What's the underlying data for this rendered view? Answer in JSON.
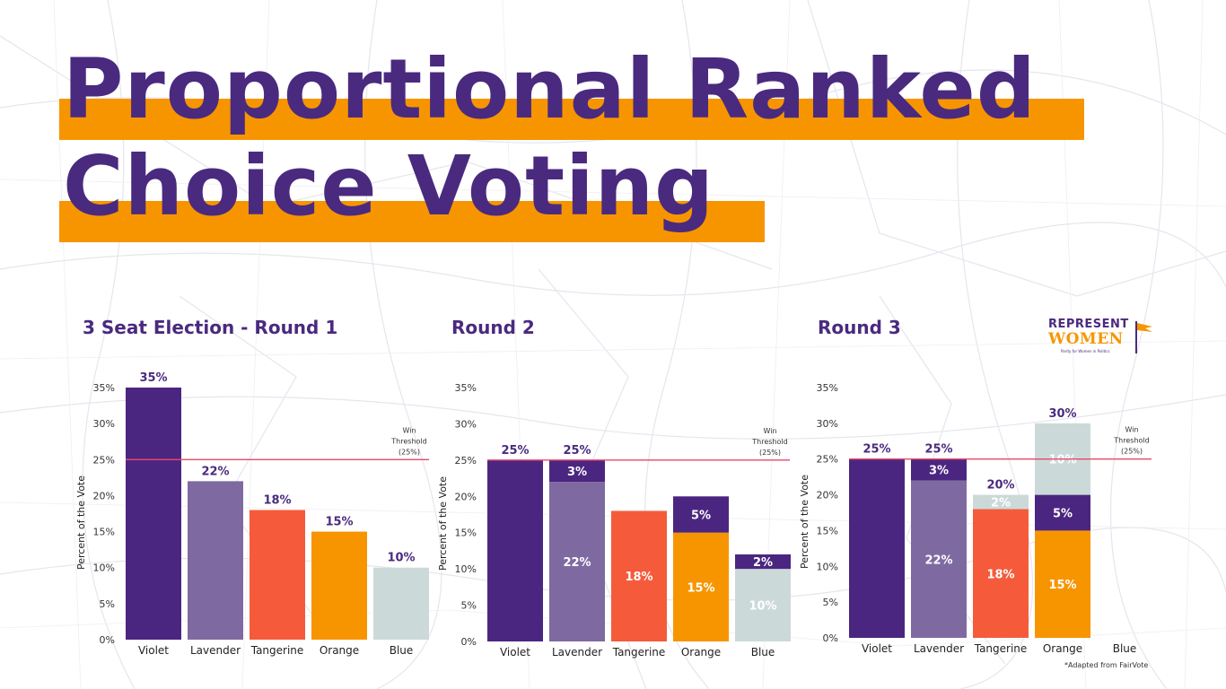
{
  "title": {
    "line1": "Proportional Ranked",
    "line2": "Choice Voting"
  },
  "colors": {
    "title": "#4A2A7F",
    "highlight": "#F79500",
    "threshold": "#E8476A",
    "violet": "#4B2680",
    "lavender": "#7E6AA0",
    "tangerine": "#F55B3B",
    "orange": "#F79500",
    "blue": "#CBDAD9"
  },
  "logo": {
    "line1": "REPRESENT",
    "line2": "WOMEN",
    "tagline": "Parity for Women in Politics",
    "icon": "flag-icon"
  },
  "footnote": "*Adapted from FairVote",
  "chart_data": [
    {
      "type": "bar",
      "stacked": true,
      "title": "3 Seat Election - Round 1",
      "ylabel": "Percent of the Vote",
      "xlabel": "",
      "ylim": [
        0,
        35
      ],
      "yticks": [
        "0%",
        "5%",
        "10%",
        "15%",
        "20%",
        "25%",
        "30%",
        "35%"
      ],
      "categories": [
        "Violet",
        "Lavender",
        "Tangerine",
        "Orange",
        "Blue"
      ],
      "threshold": {
        "value": 25,
        "label": [
          "Win",
          "Threshold",
          "(25%)"
        ]
      },
      "bars": [
        {
          "category": "Violet",
          "total": 35,
          "total_label": "35%",
          "segments": [
            {
              "value": 35,
              "color": "violet",
              "label": ""
            }
          ]
        },
        {
          "category": "Lavender",
          "total": 22,
          "total_label": "22%",
          "segments": [
            {
              "value": 22,
              "color": "lavender",
              "label": ""
            }
          ]
        },
        {
          "category": "Tangerine",
          "total": 18,
          "total_label": "18%",
          "segments": [
            {
              "value": 18,
              "color": "tangerine",
              "label": ""
            }
          ]
        },
        {
          "category": "Orange",
          "total": 15,
          "total_label": "15%",
          "segments": [
            {
              "value": 15,
              "color": "orange",
              "label": ""
            }
          ]
        },
        {
          "category": "Blue",
          "total": 10,
          "total_label": "10%",
          "segments": [
            {
              "value": 10,
              "color": "blue",
              "label": ""
            }
          ]
        }
      ]
    },
    {
      "type": "bar",
      "stacked": true,
      "title": "Round 2",
      "ylabel": "Percent of the Vote",
      "xlabel": "",
      "ylim": [
        0,
        35
      ],
      "yticks": [
        "0%",
        "5%",
        "10%",
        "15%",
        "20%",
        "25%",
        "30%",
        "35%"
      ],
      "categories": [
        "Violet",
        "Lavender",
        "Tangerine",
        "Orange",
        "Blue"
      ],
      "threshold": {
        "value": 25,
        "label": [
          "Win",
          "Threshold",
          "(25%)"
        ]
      },
      "bars": [
        {
          "category": "Violet",
          "total": 25,
          "total_label": "25%",
          "segments": [
            {
              "value": 25,
              "color": "violet",
              "label": ""
            }
          ]
        },
        {
          "category": "Lavender",
          "total": 25,
          "total_label": "25%",
          "segments": [
            {
              "value": 22,
              "color": "lavender",
              "label": "22%"
            },
            {
              "value": 3,
              "color": "violet",
              "label": "3%"
            }
          ]
        },
        {
          "category": "Tangerine",
          "total": 18,
          "total_label": "",
          "segments": [
            {
              "value": 18,
              "color": "tangerine",
              "label": "18%"
            }
          ]
        },
        {
          "category": "Orange",
          "total": 20,
          "total_label": "",
          "segments": [
            {
              "value": 15,
              "color": "orange",
              "label": "15%"
            },
            {
              "value": 5,
              "color": "violet",
              "label": "5%"
            }
          ]
        },
        {
          "category": "Blue",
          "total": 12,
          "total_label": "",
          "segments": [
            {
              "value": 10,
              "color": "blue",
              "label": "10%"
            },
            {
              "value": 2,
              "color": "violet",
              "label": "2%"
            }
          ]
        }
      ]
    },
    {
      "type": "bar",
      "stacked": true,
      "title": "Round 3",
      "ylabel": "Percent of the Vote",
      "xlabel": "",
      "ylim": [
        0,
        35
      ],
      "yticks": [
        "0%",
        "5%",
        "10%",
        "15%",
        "20%",
        "25%",
        "30%",
        "35%"
      ],
      "categories": [
        "Violet",
        "Lavender",
        "Tangerine",
        "Orange",
        "Blue"
      ],
      "threshold": {
        "value": 25,
        "label": [
          "Win",
          "Threshold",
          "(25%)"
        ]
      },
      "bars": [
        {
          "category": "Violet",
          "total": 25,
          "total_label": "25%",
          "segments": [
            {
              "value": 25,
              "color": "violet",
              "label": ""
            }
          ]
        },
        {
          "category": "Lavender",
          "total": 25,
          "total_label": "25%",
          "segments": [
            {
              "value": 22,
              "color": "lavender",
              "label": "22%"
            },
            {
              "value": 3,
              "color": "violet",
              "label": "3%"
            }
          ]
        },
        {
          "category": "Tangerine",
          "total": 20,
          "total_label": "20%",
          "segments": [
            {
              "value": 18,
              "color": "tangerine",
              "label": "18%"
            },
            {
              "value": 2,
              "color": "blue",
              "label": "2%"
            }
          ]
        },
        {
          "category": "Orange",
          "total": 30,
          "total_label": "30%",
          "segments": [
            {
              "value": 15,
              "color": "orange",
              "label": "15%"
            },
            {
              "value": 5,
              "color": "violet",
              "label": "5%"
            },
            {
              "value": 10,
              "color": "blue",
              "label": "10%"
            }
          ]
        },
        {
          "category": "Blue",
          "total": 0,
          "total_label": "",
          "segments": []
        }
      ]
    }
  ]
}
